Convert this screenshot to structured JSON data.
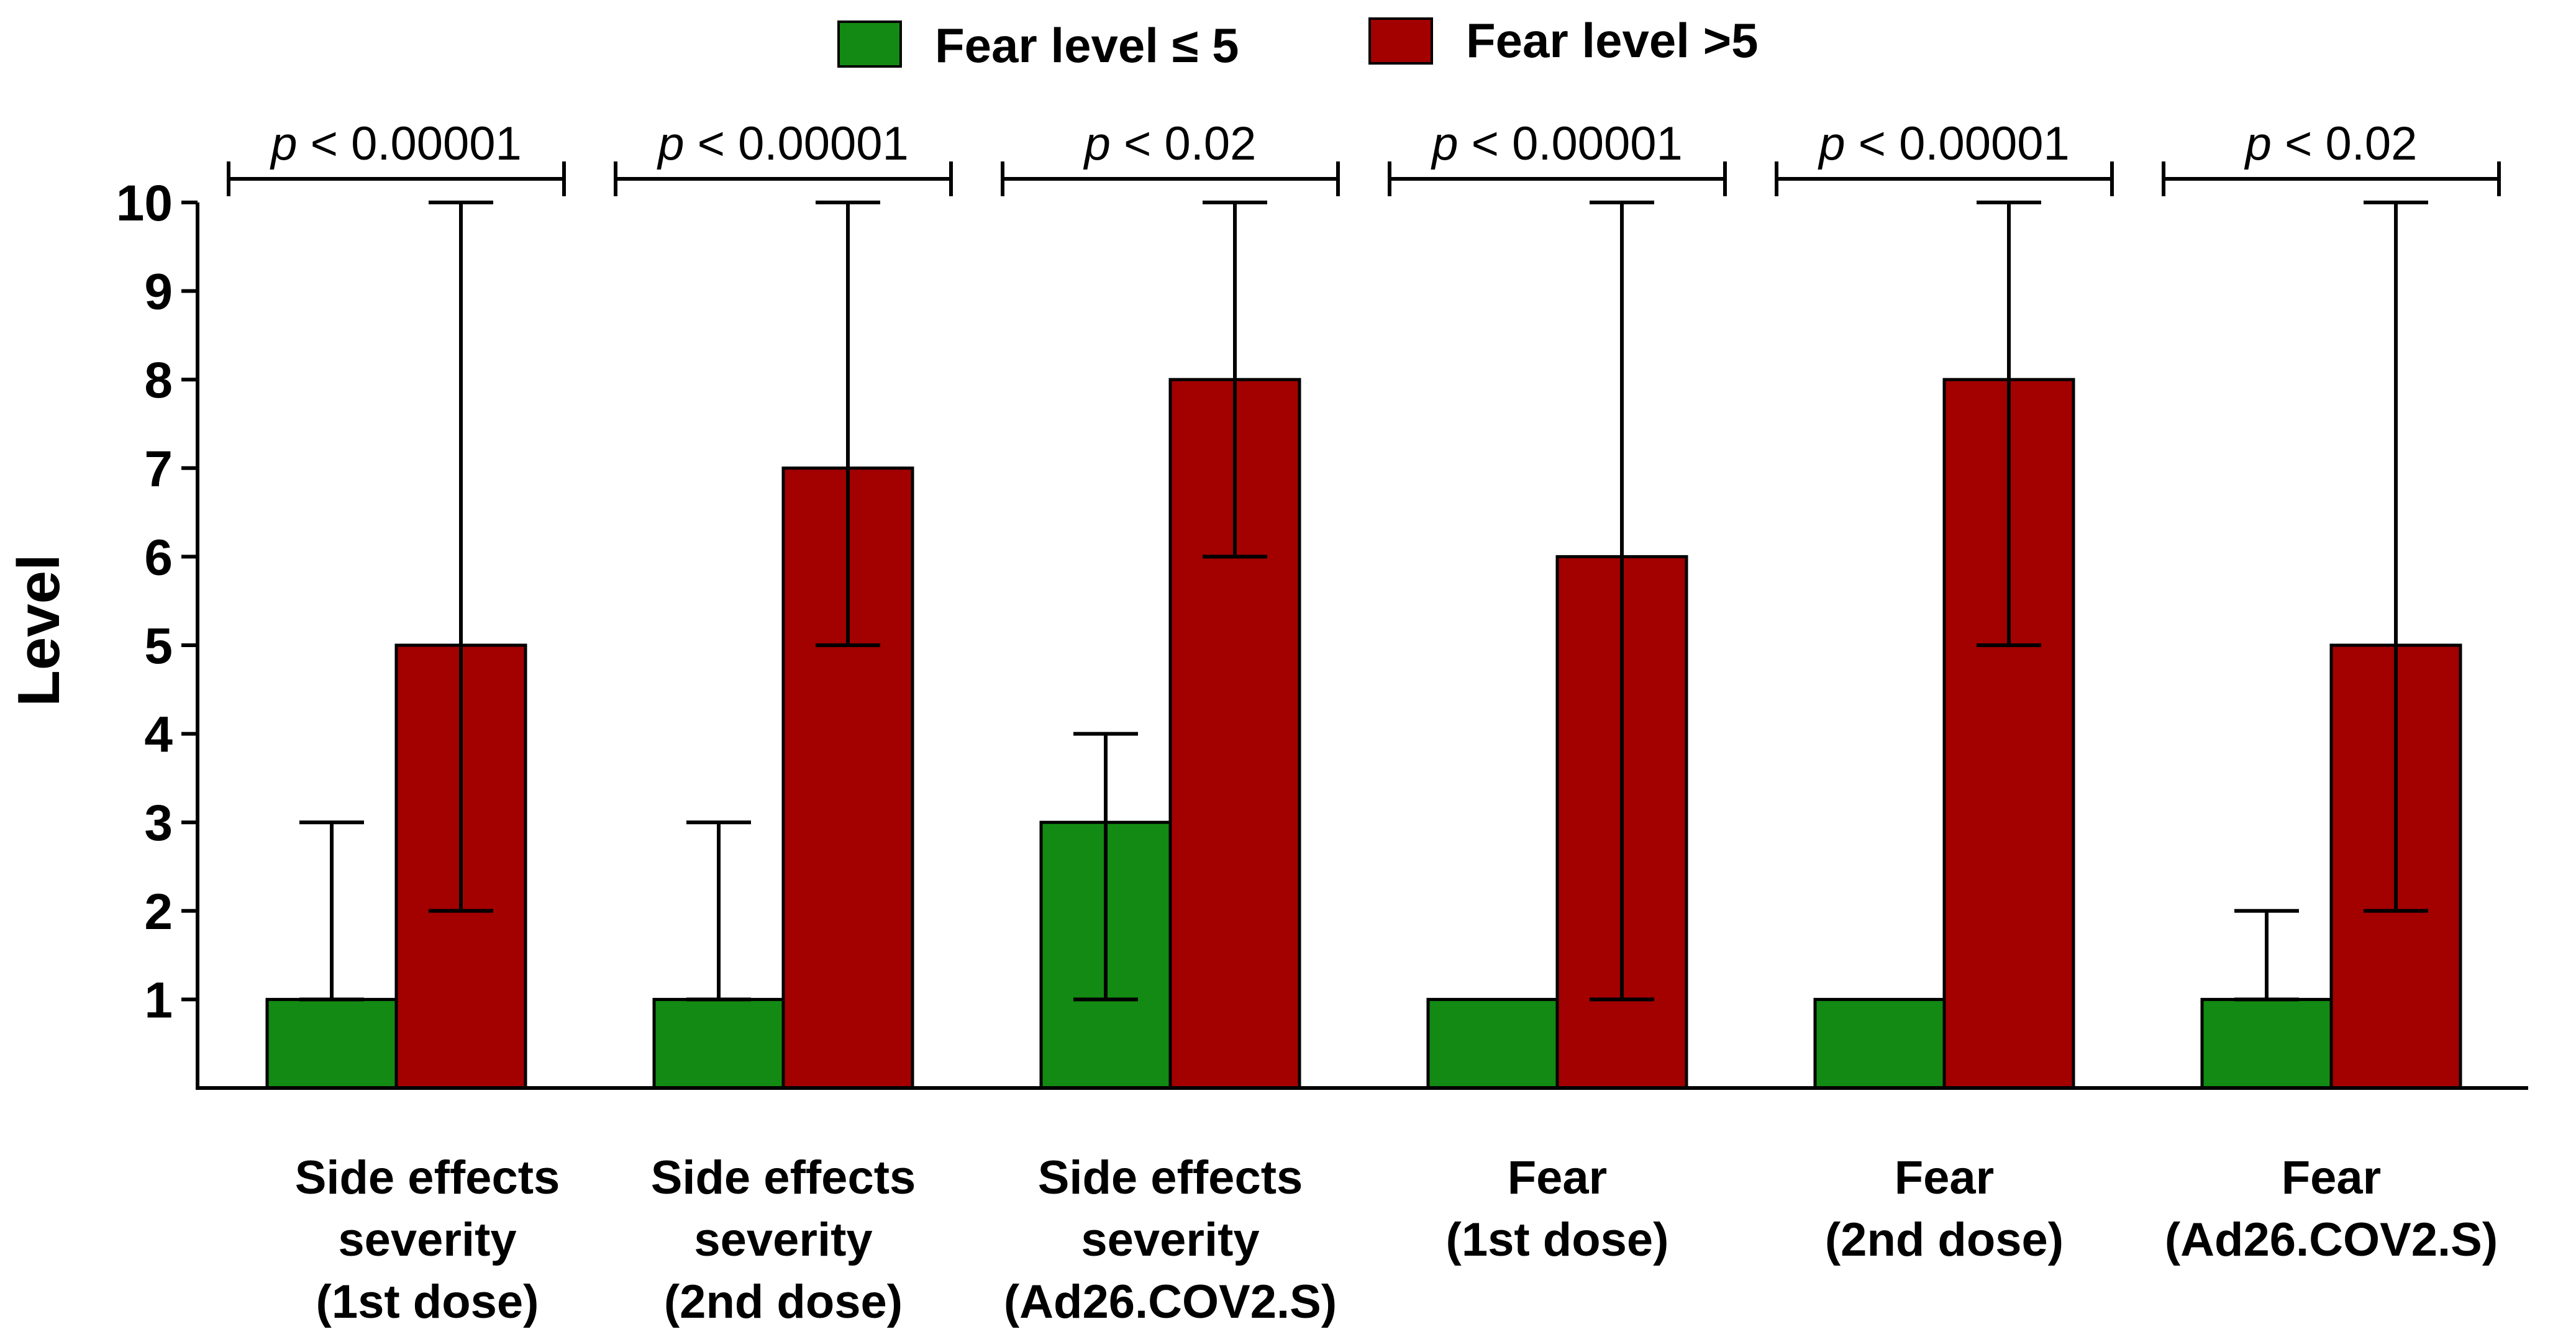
{
  "chart_data": {
    "type": "bar",
    "title": "",
    "xlabel": "",
    "ylabel": "Level",
    "ylim": [
      0,
      10
    ],
    "yticks": [
      "1",
      "2",
      "3",
      "4",
      "5",
      "6",
      "7",
      "8",
      "9",
      "10"
    ],
    "colors": {
      "low": "#138a13",
      "high": "#a30000"
    },
    "legend": {
      "position": "top-center",
      "items": [
        {
          "label": "Fear level ≤ 5",
          "color": "#138a13"
        },
        {
          "label": "Fear level >5",
          "color": "#a30000"
        }
      ]
    },
    "categories": [
      {
        "lines": [
          "Side effects",
          "severity",
          "(1st dose)"
        ],
        "p_prefix": "p",
        "p_rest": " < 0.00001"
      },
      {
        "lines": [
          "Side effects",
          "severity",
          "(2nd dose)"
        ],
        "p_prefix": "p",
        "p_rest": " < 0.00001"
      },
      {
        "lines": [
          "Side effects",
          "severity",
          "(Ad26.COV2.S)"
        ],
        "p_prefix": "p",
        "p_rest": " < 0.02"
      },
      {
        "lines": [
          "Fear",
          "(1st dose)"
        ],
        "p_prefix": "p",
        "p_rest": " < 0.00001"
      },
      {
        "lines": [
          "Fear",
          "(2nd dose)"
        ],
        "p_prefix": "p",
        "p_rest": " < 0.00001"
      },
      {
        "lines": [
          "Fear",
          "(Ad26.COV2.S)"
        ],
        "p_prefix": "p",
        "p_rest": " < 0.02"
      }
    ],
    "series": [
      {
        "name": "Fear level ≤ 5",
        "values": [
          1,
          1,
          3,
          1,
          1,
          1
        ],
        "error_low": [
          1,
          1,
          1,
          1,
          1,
          1
        ],
        "error_high": [
          3,
          3,
          4,
          1,
          1,
          2
        ]
      },
      {
        "name": "Fear level >5",
        "values": [
          5,
          7,
          8,
          6,
          8,
          5
        ],
        "error_low": [
          2,
          5,
          6,
          1,
          5,
          2
        ],
        "error_high": [
          10,
          10,
          10,
          10,
          10,
          10
        ]
      }
    ]
  }
}
